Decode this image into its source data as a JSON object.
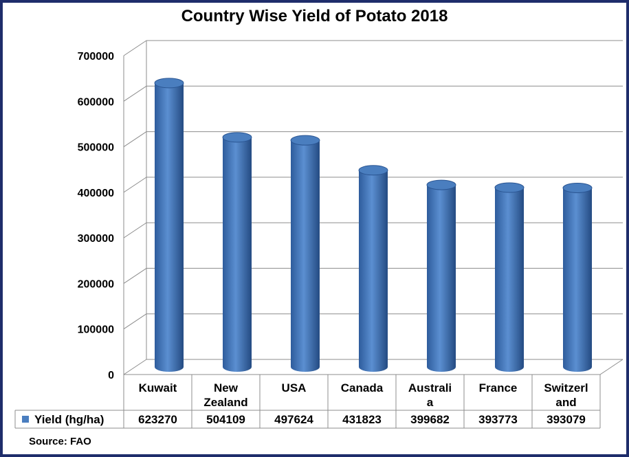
{
  "chart_data": {
    "type": "bar",
    "title": "Country Wise Yield of Potato 2018",
    "categories": [
      "Kuwait",
      "New Zealand",
      "USA",
      "Canada",
      "Australia",
      "France",
      "Switzerland"
    ],
    "category_label_lines": [
      [
        "Kuwait"
      ],
      [
        "New",
        "Zealand"
      ],
      [
        "USA"
      ],
      [
        "Canada"
      ],
      [
        "Australi",
        "a"
      ],
      [
        "France"
      ],
      [
        "Switzerl",
        "and"
      ]
    ],
    "series": [
      {
        "name": "Yield (hg/ha)",
        "values": [
          623270,
          504109,
          497624,
          431823,
          399682,
          393773,
          393079
        ],
        "color": "#4a7ebf"
      }
    ],
    "ylim": [
      0,
      700000
    ],
    "yticks": [
      "0",
      "100000",
      "200000",
      "300000",
      "400000",
      "500000",
      "600000",
      "700000"
    ],
    "value_labels": [
      "623270",
      "504109",
      "497624",
      "431823",
      "399682",
      "393773",
      "393079"
    ],
    "grid": true,
    "legend": "data-table-left"
  },
  "source": "Source: FAO",
  "colors": {
    "border": "#1f2d6b",
    "bar": "#4a7ebf",
    "bar_dark": "#2a5592",
    "grid": "#8c8c8c"
  }
}
